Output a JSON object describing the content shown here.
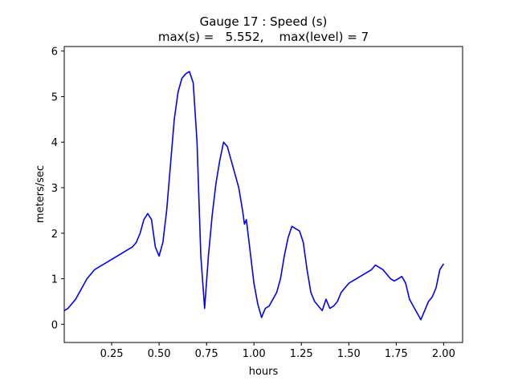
{
  "chart_data": {
    "type": "line",
    "title": "Gauge 17 : Speed (s)",
    "subtitle": "max(s) =   5.552,    max(level) = 7",
    "xlabel": "hours",
    "ylabel": "meters/sec",
    "xlim": [
      0.0,
      2.1
    ],
    "ylim": [
      -0.4,
      6.1
    ],
    "xticks": [
      0.25,
      0.5,
      0.75,
      1.0,
      1.25,
      1.5,
      1.75,
      2.0
    ],
    "xtick_labels": [
      "0.25",
      "0.50",
      "0.75",
      "1.00",
      "1.25",
      "1.50",
      "1.75",
      "2.00"
    ],
    "yticks": [
      0,
      1,
      2,
      3,
      4,
      5,
      6
    ],
    "ytick_labels": [
      "0",
      "1",
      "2",
      "3",
      "4",
      "5",
      "6"
    ],
    "grid": false,
    "series": [
      {
        "color": "#0000ff",
        "x": [
          0.0,
          0.02,
          0.04,
          0.06,
          0.08,
          0.1,
          0.12,
          0.14,
          0.16,
          0.18,
          0.2,
          0.22,
          0.24,
          0.26,
          0.28,
          0.3,
          0.32,
          0.34,
          0.36,
          0.38,
          0.4,
          0.42,
          0.44,
          0.46,
          0.48,
          0.5,
          0.52,
          0.54,
          0.56,
          0.58,
          0.6,
          0.62,
          0.64,
          0.66,
          0.68,
          0.7,
          0.72,
          0.74,
          0.76,
          0.78,
          0.8,
          0.82,
          0.84,
          0.86,
          0.88,
          0.9,
          0.92,
          0.94,
          0.95,
          0.96,
          0.98,
          1.0,
          1.02,
          1.04,
          1.06,
          1.08,
          1.1,
          1.12,
          1.14,
          1.16,
          1.18,
          1.2,
          1.22,
          1.24,
          1.26,
          1.28,
          1.3,
          1.32,
          1.34,
          1.36,
          1.38,
          1.4,
          1.42,
          1.44,
          1.46,
          1.48,
          1.5,
          1.52,
          1.54,
          1.56,
          1.58,
          1.6,
          1.62,
          1.64,
          1.66,
          1.68,
          1.7,
          1.72,
          1.74,
          1.76,
          1.78,
          1.8,
          1.82,
          1.84,
          1.86,
          1.88,
          1.9,
          1.92,
          1.94,
          1.96,
          1.98,
          2.0
        ],
        "y": [
          0.3,
          0.35,
          0.45,
          0.55,
          0.7,
          0.85,
          1.0,
          1.1,
          1.2,
          1.25,
          1.3,
          1.35,
          1.4,
          1.45,
          1.5,
          1.55,
          1.6,
          1.65,
          1.7,
          1.8,
          2.0,
          2.3,
          2.43,
          2.3,
          1.7,
          1.5,
          1.8,
          2.5,
          3.5,
          4.5,
          5.1,
          5.4,
          5.5,
          5.55,
          5.3,
          4.0,
          1.5,
          0.35,
          1.5,
          2.4,
          3.1,
          3.6,
          4.0,
          3.9,
          3.6,
          3.3,
          3.0,
          2.5,
          2.2,
          2.3,
          1.6,
          0.9,
          0.45,
          0.15,
          0.35,
          0.4,
          0.55,
          0.7,
          1.0,
          1.5,
          1.9,
          2.15,
          2.1,
          2.05,
          1.8,
          1.2,
          0.7,
          0.5,
          0.4,
          0.3,
          0.55,
          0.35,
          0.4,
          0.5,
          0.7,
          0.8,
          0.9,
          0.95,
          1.0,
          1.05,
          1.1,
          1.15,
          1.2,
          1.3,
          1.25,
          1.2,
          1.1,
          1.0,
          0.95,
          1.0,
          1.05,
          0.9,
          0.55,
          0.4,
          0.25,
          0.1,
          0.3,
          0.5,
          0.6,
          0.8,
          1.2,
          1.33
        ]
      }
    ]
  }
}
